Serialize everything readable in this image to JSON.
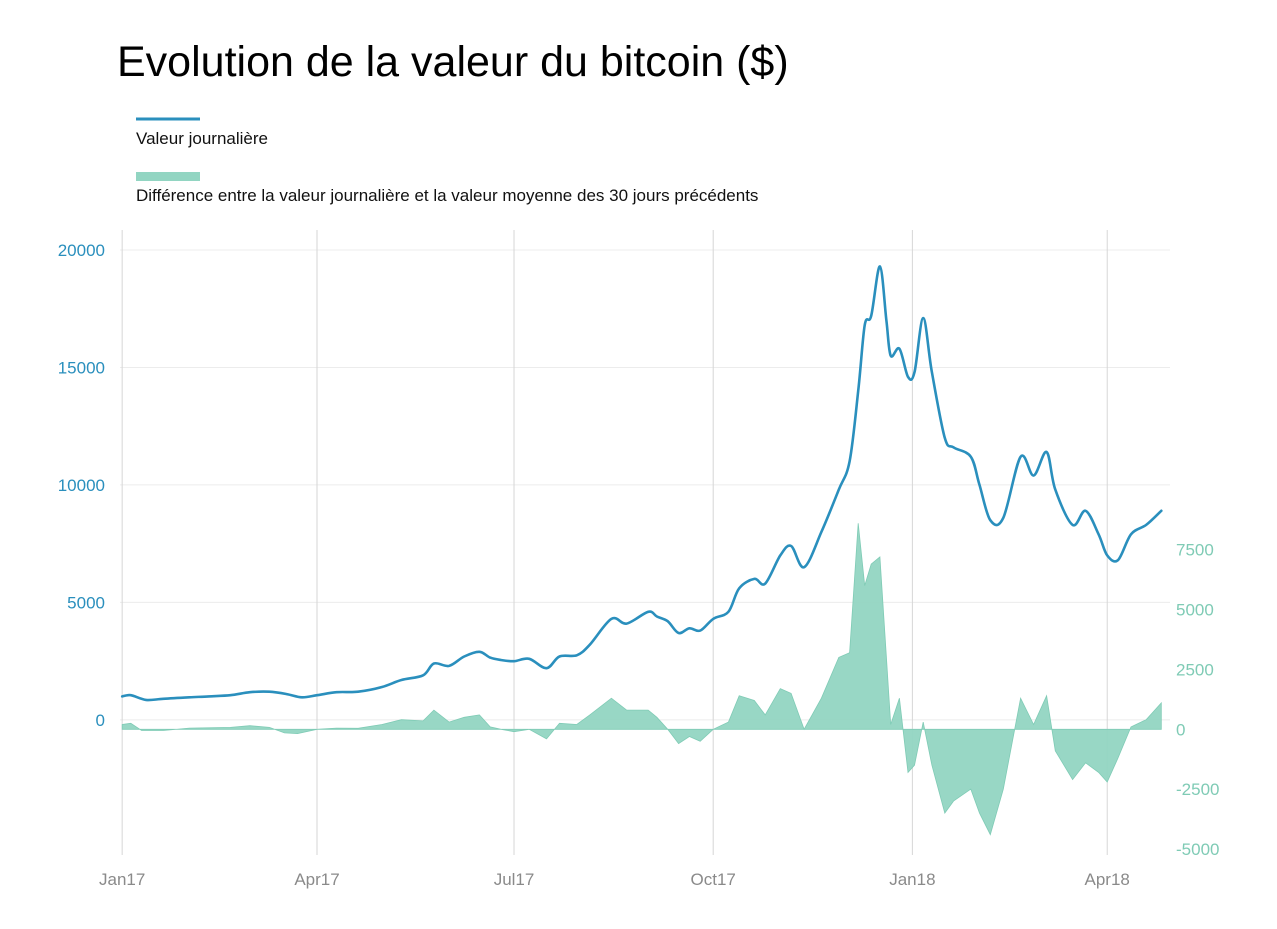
{
  "chart_data": {
    "type": "line",
    "title": "Evolution de la valeur du bitcoin ($)",
    "legend": [
      {
        "label": "Valeur journalière",
        "color": "#2a8fbd",
        "kind": "line"
      },
      {
        "label": "Différence entre la valeur journalière et la valeur moyenne des 30 jours précédents",
        "color": "#92d5c2",
        "kind": "area"
      }
    ],
    "legend_placement": "top-left",
    "grid": true,
    "x_axis": {
      "type": "date",
      "range": [
        "2016-12-31",
        "2018-04-30"
      ],
      "ticks": [
        {
          "label": "Jan17",
          "date": "2017-01-01"
        },
        {
          "label": "Apr17",
          "date": "2017-04-01"
        },
        {
          "label": "Jul17",
          "date": "2017-07-01"
        },
        {
          "label": "Oct17",
          "date": "2017-10-01"
        },
        {
          "label": "Jan18",
          "date": "2018-01-01"
        },
        {
          "label": "Apr18",
          "date": "2018-04-01"
        }
      ]
    },
    "y_left": {
      "range": [
        -5750,
        20850
      ],
      "ticks": [
        0,
        5000,
        10000,
        15000,
        20000
      ],
      "color": "#2a8fbd"
    },
    "y_right": {
      "range": [
        -5250,
        20850
      ],
      "ticks": [
        -5000,
        -2500,
        0,
        2500,
        5000,
        7500
      ],
      "tick_labels": [
        "-5000",
        "-2500",
        "0",
        "2500",
        "5000",
        "7500"
      ],
      "color": "#7fcbb5"
    },
    "series": [
      {
        "name": "Valeur journalière",
        "axis": "left",
        "color": "#2a8fbd",
        "points": [
          [
            "2017-01-01",
            1000
          ],
          [
            "2017-01-05",
            1050
          ],
          [
            "2017-01-12",
            850
          ],
          [
            "2017-01-20",
            900
          ],
          [
            "2017-02-01",
            960
          ],
          [
            "2017-02-10",
            1000
          ],
          [
            "2017-02-20",
            1050
          ],
          [
            "2017-03-01",
            1180
          ],
          [
            "2017-03-10",
            1200
          ],
          [
            "2017-03-18",
            1100
          ],
          [
            "2017-03-25",
            960
          ],
          [
            "2017-04-01",
            1050
          ],
          [
            "2017-04-10",
            1180
          ],
          [
            "2017-04-20",
            1200
          ],
          [
            "2017-05-01",
            1400
          ],
          [
            "2017-05-10",
            1700
          ],
          [
            "2017-05-20",
            1900
          ],
          [
            "2017-05-25",
            2400
          ],
          [
            "2017-06-01",
            2300
          ],
          [
            "2017-06-08",
            2700
          ],
          [
            "2017-06-15",
            2900
          ],
          [
            "2017-06-20",
            2650
          ],
          [
            "2017-06-25",
            2550
          ],
          [
            "2017-07-01",
            2500
          ],
          [
            "2017-07-08",
            2600
          ],
          [
            "2017-07-16",
            2200
          ],
          [
            "2017-07-22",
            2700
          ],
          [
            "2017-07-30",
            2750
          ],
          [
            "2017-08-05",
            3200
          ],
          [
            "2017-08-15",
            4300
          ],
          [
            "2017-08-22",
            4100
          ],
          [
            "2017-09-01",
            4600
          ],
          [
            "2017-09-05",
            4400
          ],
          [
            "2017-09-10",
            4200
          ],
          [
            "2017-09-15",
            3700
          ],
          [
            "2017-09-20",
            3900
          ],
          [
            "2017-09-25",
            3800
          ],
          [
            "2017-10-01",
            4300
          ],
          [
            "2017-10-08",
            4600
          ],
          [
            "2017-10-13",
            5600
          ],
          [
            "2017-10-20",
            6000
          ],
          [
            "2017-10-25",
            5800
          ],
          [
            "2017-11-01",
            7000
          ],
          [
            "2017-11-06",
            7400
          ],
          [
            "2017-11-12",
            6500
          ],
          [
            "2017-11-20",
            8000
          ],
          [
            "2017-11-28",
            9800
          ],
          [
            "2017-12-03",
            11000
          ],
          [
            "2017-12-07",
            14000
          ],
          [
            "2017-12-10",
            16800
          ],
          [
            "2017-12-13",
            17200
          ],
          [
            "2017-12-17",
            19300
          ],
          [
            "2017-12-20",
            17000
          ],
          [
            "2017-12-22",
            15500
          ],
          [
            "2017-12-26",
            15800
          ],
          [
            "2017-12-30",
            14600
          ],
          [
            "2018-01-02",
            14800
          ],
          [
            "2018-01-06",
            17100
          ],
          [
            "2018-01-10",
            14800
          ],
          [
            "2018-01-16",
            12000
          ],
          [
            "2018-01-20",
            11600
          ],
          [
            "2018-01-28",
            11200
          ],
          [
            "2018-02-01",
            10000
          ],
          [
            "2018-02-06",
            8500
          ],
          [
            "2018-02-12",
            8600
          ],
          [
            "2018-02-20",
            11200
          ],
          [
            "2018-02-26",
            10400
          ],
          [
            "2018-03-04",
            11400
          ],
          [
            "2018-03-08",
            9800
          ],
          [
            "2018-03-16",
            8300
          ],
          [
            "2018-03-22",
            8900
          ],
          [
            "2018-03-28",
            7900
          ],
          [
            "2018-04-01",
            7000
          ],
          [
            "2018-04-06",
            6800
          ],
          [
            "2018-04-12",
            7900
          ],
          [
            "2018-04-19",
            8300
          ],
          [
            "2018-04-26",
            8900
          ]
        ]
      },
      {
        "name": "Différence entre la valeur journalière et la valeur moyenne des 30 jours précédents",
        "axis": "right",
        "color": "#92d5c2",
        "points": [
          [
            "2017-01-01",
            200
          ],
          [
            "2017-01-05",
            250
          ],
          [
            "2017-01-10",
            -50
          ],
          [
            "2017-01-20",
            -50
          ],
          [
            "2017-02-01",
            50
          ],
          [
            "2017-02-10",
            60
          ],
          [
            "2017-02-20",
            80
          ],
          [
            "2017-03-01",
            150
          ],
          [
            "2017-03-10",
            80
          ],
          [
            "2017-03-17",
            -150
          ],
          [
            "2017-03-23",
            -180
          ],
          [
            "2017-04-01",
            0
          ],
          [
            "2017-04-10",
            50
          ],
          [
            "2017-04-20",
            40
          ],
          [
            "2017-05-01",
            200
          ],
          [
            "2017-05-10",
            400
          ],
          [
            "2017-05-20",
            350
          ],
          [
            "2017-05-25",
            800
          ],
          [
            "2017-06-01",
            300
          ],
          [
            "2017-06-08",
            500
          ],
          [
            "2017-06-15",
            600
          ],
          [
            "2017-06-20",
            100
          ],
          [
            "2017-06-25",
            0
          ],
          [
            "2017-07-01",
            -100
          ],
          [
            "2017-07-08",
            0
          ],
          [
            "2017-07-16",
            -400
          ],
          [
            "2017-07-22",
            250
          ],
          [
            "2017-07-30",
            200
          ],
          [
            "2017-08-05",
            600
          ],
          [
            "2017-08-15",
            1300
          ],
          [
            "2017-08-22",
            800
          ],
          [
            "2017-09-01",
            800
          ],
          [
            "2017-09-05",
            500
          ],
          [
            "2017-09-10",
            0
          ],
          [
            "2017-09-15",
            -600
          ],
          [
            "2017-09-20",
            -300
          ],
          [
            "2017-09-25",
            -500
          ],
          [
            "2017-10-01",
            0
          ],
          [
            "2017-10-08",
            300
          ],
          [
            "2017-10-13",
            1400
          ],
          [
            "2017-10-20",
            1200
          ],
          [
            "2017-10-25",
            600
          ],
          [
            "2017-11-01",
            1700
          ],
          [
            "2017-11-06",
            1500
          ],
          [
            "2017-11-12",
            0
          ],
          [
            "2017-11-20",
            1300
          ],
          [
            "2017-11-28",
            3000
          ],
          [
            "2017-12-03",
            3200
          ],
          [
            "2017-12-07",
            8600
          ],
          [
            "2017-12-10",
            6000
          ],
          [
            "2017-12-13",
            6900
          ],
          [
            "2017-12-17",
            7200
          ],
          [
            "2017-12-20",
            3000
          ],
          [
            "2017-12-22",
            200
          ],
          [
            "2017-12-26",
            1300
          ],
          [
            "2017-12-30",
            -1800
          ],
          [
            "2018-01-02",
            -1500
          ],
          [
            "2018-01-06",
            300
          ],
          [
            "2018-01-10",
            -1500
          ],
          [
            "2018-01-16",
            -3500
          ],
          [
            "2018-01-20",
            -3000
          ],
          [
            "2018-01-28",
            -2500
          ],
          [
            "2018-02-01",
            -3500
          ],
          [
            "2018-02-06",
            -4400
          ],
          [
            "2018-02-12",
            -2500
          ],
          [
            "2018-02-20",
            1300
          ],
          [
            "2018-02-26",
            200
          ],
          [
            "2018-03-04",
            1400
          ],
          [
            "2018-03-08",
            -900
          ],
          [
            "2018-03-16",
            -2100
          ],
          [
            "2018-03-22",
            -1400
          ],
          [
            "2018-03-28",
            -1800
          ],
          [
            "2018-04-01",
            -2200
          ],
          [
            "2018-04-06",
            -1200
          ],
          [
            "2018-04-12",
            100
          ],
          [
            "2018-04-19",
            400
          ],
          [
            "2018-04-26",
            1100
          ]
        ]
      }
    ]
  }
}
